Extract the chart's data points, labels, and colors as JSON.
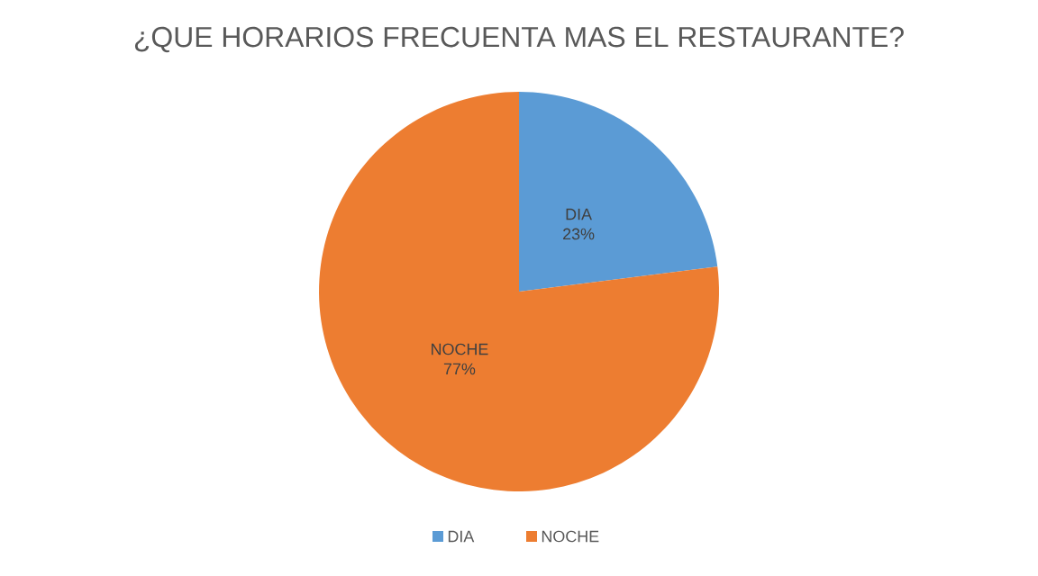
{
  "chart_data": {
    "type": "pie",
    "title": "¿QUE HORARIOS FRECUENTA MAS EL RESTAURANTE?",
    "categories": [
      "DIA",
      "NOCHE"
    ],
    "values": [
      23,
      77
    ],
    "value_labels": [
      "23%",
      "77%"
    ],
    "colors": [
      "#5b9bd5",
      "#ed7d31"
    ],
    "legend": "bottom"
  }
}
